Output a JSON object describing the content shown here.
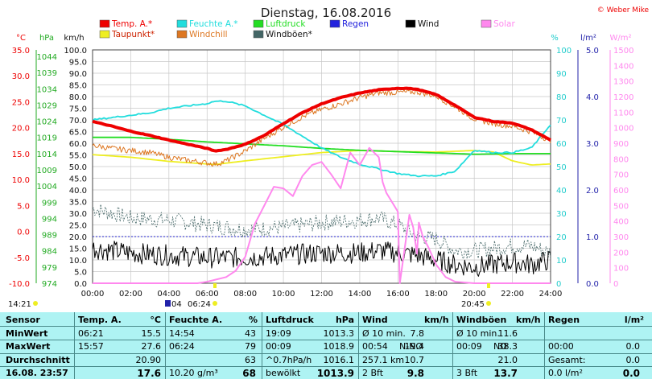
{
  "title": "Dienstag, 16.08.2016",
  "credit": "© Weber Mike",
  "legend": [
    {
      "label": "Temp. A.*",
      "color": "#ee0000"
    },
    {
      "label": "Feuchte A.*",
      "color": "#22dddd"
    },
    {
      "label": "Luftdruck",
      "color": "#22dd22"
    },
    {
      "label": "Regen",
      "color": "#2222dd"
    },
    {
      "label": "Wind",
      "color": "#000000"
    },
    {
      "label": "Solar",
      "color": "#ff88ee"
    },
    {
      "label": "Taupunkt*",
      "color": "#eeee22"
    },
    {
      "label": "Windchill",
      "color": "#dd7722"
    },
    {
      "label": "Windböen*",
      "color": "#446666"
    }
  ],
  "chart_data": {
    "type": "line",
    "x_ticks": [
      "00:00",
      "02:00",
      "04:00",
      "06:00",
      "08:00",
      "10:00",
      "12:00",
      "14:00",
      "16:00",
      "18:00",
      "20:00",
      "22:00",
      "24:00"
    ],
    "axes": {
      "celsius": {
        "unit": "°C",
        "color": "#ee0000",
        "ticks": [
          "35.0",
          "30.0",
          "25.0",
          "20.0",
          "15.0",
          "10.0",
          "5.0",
          "0.0",
          "-5.0",
          "-10.0"
        ]
      },
      "hpa": {
        "unit": "hPa",
        "color": "#22aa22",
        "ticks": [
          "1044",
          "1039",
          "1034",
          "1029",
          "1024",
          "1019",
          "1014",
          "1009",
          "1004",
          "999",
          "994",
          "989",
          "984",
          "979",
          "974"
        ]
      },
      "kmh": {
        "unit": "km/h",
        "color": "#000000",
        "ticks": [
          "100.0",
          "95.0",
          "90.0",
          "85.0",
          "80.0",
          "75.0",
          "70.0",
          "65.0",
          "60.0",
          "55.0",
          "50.0",
          "45.0",
          "40.0",
          "35.0",
          "30.0",
          "25.0",
          "20.0",
          "15.0",
          "10.0",
          "5.0",
          "0.0"
        ]
      },
      "percent": {
        "unit": "%",
        "color": "#22cccc",
        "ticks": [
          "100",
          "90",
          "80",
          "70",
          "60",
          "50",
          "40",
          "30",
          "20",
          "10",
          "0"
        ]
      },
      "rain": {
        "unit": "l/m²",
        "color": "#2222aa",
        "ticks": [
          "5.0",
          "4.0",
          "3.0",
          "2.0",
          "1.0",
          "0.0"
        ]
      },
      "solar": {
        "unit": "W/m²",
        "color": "#ff88ee",
        "ticks": [
          "1500",
          "1400",
          "1300",
          "1200",
          "1100",
          "1000",
          "900",
          "800",
          "700",
          "600",
          "500",
          "400",
          "300",
          "200",
          "100",
          "0"
        ]
      }
    },
    "series": [
      {
        "name": "Temp. A.*",
        "axis": "celsius",
        "color": "#ee0000",
        "x": [
          0,
          1,
          2,
          3,
          4,
          5,
          6,
          6.4,
          7,
          8,
          9,
          10,
          11,
          12,
          13,
          14,
          15,
          15.95,
          16.5,
          17,
          18,
          19,
          20,
          21,
          22,
          23,
          24
        ],
        "values": [
          21.2,
          20.3,
          19.3,
          18.5,
          17.6,
          16.8,
          16.0,
          15.5,
          15.8,
          16.8,
          18.5,
          20.8,
          22.9,
          24.6,
          25.8,
          26.7,
          27.3,
          27.6,
          27.6,
          27.4,
          26.4,
          24.3,
          22.0,
          21.2,
          20.9,
          19.6,
          17.6
        ]
      },
      {
        "name": "Feuchte A.*",
        "axis": "percent",
        "color": "#22dddd",
        "x": [
          0,
          1,
          2,
          3,
          4,
          5,
          6,
          6.4,
          7,
          8,
          9,
          10,
          11,
          12,
          13,
          14,
          15,
          16,
          17,
          18,
          19,
          20,
          21,
          22,
          23,
          24
        ],
        "values": [
          70,
          71,
          72,
          73,
          75,
          76,
          77,
          78,
          78,
          76,
          72,
          68,
          63,
          58,
          54,
          51,
          49,
          47,
          46,
          46,
          48,
          57,
          56,
          56,
          58,
          68
        ]
      },
      {
        "name": "Luftdruck",
        "axis": "hpa",
        "color": "#22dd22",
        "x": [
          0,
          2,
          4,
          6,
          8,
          10,
          12,
          14,
          16,
          18,
          20,
          22,
          24
        ],
        "values": [
          1019.0,
          1019.0,
          1018.4,
          1017.6,
          1017.0,
          1016.4,
          1015.6,
          1015.0,
          1014.6,
          1014.2,
          1013.8,
          1014.0,
          1014.0
        ]
      },
      {
        "name": "Taupunkt*",
        "axis": "celsius",
        "color": "#eeee22",
        "x": [
          0,
          2,
          4,
          6,
          6.4,
          8,
          10,
          12,
          14,
          16,
          18,
          20,
          21,
          22,
          23,
          24
        ],
        "values": [
          14.8,
          14.3,
          13.5,
          13.0,
          12.9,
          13.6,
          14.4,
          15.2,
          15.6,
          15.4,
          15.3,
          15.6,
          15.3,
          13.6,
          12.8,
          13.0
        ]
      },
      {
        "name": "Windchill",
        "axis": "celsius",
        "color": "#dd7722",
        "x": [
          0,
          1,
          2,
          3,
          4,
          5,
          6,
          6.5,
          7,
          8,
          9,
          10,
          11,
          12,
          13,
          14,
          15,
          16,
          17,
          18,
          19,
          20,
          21,
          22,
          23,
          24
        ],
        "values": [
          16.6,
          16.0,
          15.6,
          15.2,
          14.3,
          13.7,
          13.2,
          13.0,
          13.6,
          15.5,
          17.9,
          20.1,
          22.1,
          23.5,
          24.6,
          25.8,
          26.7,
          26.8,
          26.9,
          26.1,
          24.0,
          21.7,
          20.8,
          20.3,
          19.2,
          17.5
        ]
      },
      {
        "name": "Wind",
        "axis": "kmh",
        "color": "#000000",
        "x": [
          0,
          2,
          4,
          6,
          8,
          10,
          12,
          14,
          15,
          16,
          17,
          18,
          19,
          20,
          21,
          22,
          23,
          24
        ],
        "values": [
          15,
          13,
          12,
          11,
          11,
          12,
          13,
          13,
          14,
          13,
          12,
          10,
          8,
          7,
          8,
          9,
          8,
          10
        ]
      },
      {
        "name": "Windböen*",
        "axis": "kmh",
        "color": "#446666",
        "x": [
          0,
          2,
          4,
          6,
          8,
          10,
          12,
          14,
          15,
          16,
          17,
          18,
          19,
          20,
          21,
          22,
          23,
          24
        ],
        "values": [
          32,
          28,
          27,
          25,
          23,
          24,
          26,
          27,
          28,
          25,
          20,
          19,
          14,
          14,
          15,
          16,
          16,
          13
        ]
      },
      {
        "name": "Solar",
        "axis": "solar",
        "color": "#ff88ee",
        "x": [
          0,
          5.5,
          6.0,
          7.0,
          7.5,
          8.0,
          8.5,
          9.0,
          9.5,
          10.0,
          10.5,
          11.0,
          11.5,
          12.0,
          12.5,
          13.0,
          13.5,
          14.0,
          14.5,
          15.0,
          15.2,
          15.4,
          15.8,
          16.0,
          16.1,
          16.6,
          16.8,
          17.0,
          17.1,
          17.3,
          17.6,
          18.0,
          18.5,
          19.0,
          20.0,
          21.0,
          24.0
        ],
        "values": [
          0,
          0,
          10,
          40,
          80,
          170,
          380,
          500,
          620,
          610,
          560,
          690,
          760,
          780,
          700,
          610,
          840,
          760,
          870,
          810,
          650,
          580,
          500,
          460,
          0,
          440,
          360,
          190,
          390,
          300,
          230,
          120,
          40,
          10,
          0,
          0,
          0
        ]
      }
    ]
  },
  "markers": {
    "bottom_left": "14:21",
    "mid_1": "04",
    "mid_2": "06:24",
    "right": "20:45"
  },
  "table": {
    "headers": {
      "sensor": "Sensor",
      "temp": "Temp. A.",
      "temp_unit": "°C",
      "hum": "Feuchte A.",
      "hum_unit": "%",
      "press": "Luftdruck",
      "press_unit": "hPa",
      "wind": "Wind",
      "wind_unit": "km/h",
      "gust": "Windböen",
      "gust_unit": "km/h",
      "rain": "Regen",
      "rain_unit": "l/m²"
    },
    "rows": [
      {
        "label": "MinWert",
        "temp_t": "06:21",
        "temp_v": "15.5",
        "hum_t": "14:54",
        "hum_v": "43",
        "press_t": "19:09",
        "press_v": "1013.3",
        "wind_t": "Ø 10 min.",
        "wind_v": "7.8",
        "gust_t": "Ø 10 min.",
        "gust_v": "11.6",
        "rain_t": "",
        "rain_v": ""
      },
      {
        "label": "MaxWert",
        "temp_t": "15:57",
        "temp_v": "27.6",
        "hum_t": "06:24",
        "hum_v": "79",
        "press_t": "00:09",
        "press_v": "1018.9",
        "wind_t": "00:54",
        "wind_d": "N-NO",
        "wind_v": "19.4",
        "gust_t": "00:09",
        "gust_d": "NO",
        "gust_v": "38.3",
        "rain_t": "00:00",
        "rain_v": "0.0"
      },
      {
        "label": "Durchschnitt",
        "temp_t": "",
        "temp_v": "20.90",
        "hum_t": "",
        "hum_v": "63",
        "press_t": "^0.7hPa/h",
        "press_v": "1016.1",
        "wind_t": "257.1 km",
        "wind_v": "10.7",
        "gust_t": "",
        "gust_v": "21.0",
        "rain_t": "Gesamt:",
        "rain_v": "0.0"
      },
      {
        "label": "16.08. 23:57",
        "temp_t": "",
        "temp_v": "17.6",
        "hum_t": "10.20 g/m³",
        "hum_v": "68",
        "press_t": "bewölkt",
        "press_v": "1013.9",
        "wind_t": "2 Bft",
        "wind_v": "9.8",
        "gust_t": "3 Bft",
        "gust_v": "13.7",
        "rain_t": "0.0 l/m²",
        "rain_v": "0.0"
      }
    ]
  }
}
